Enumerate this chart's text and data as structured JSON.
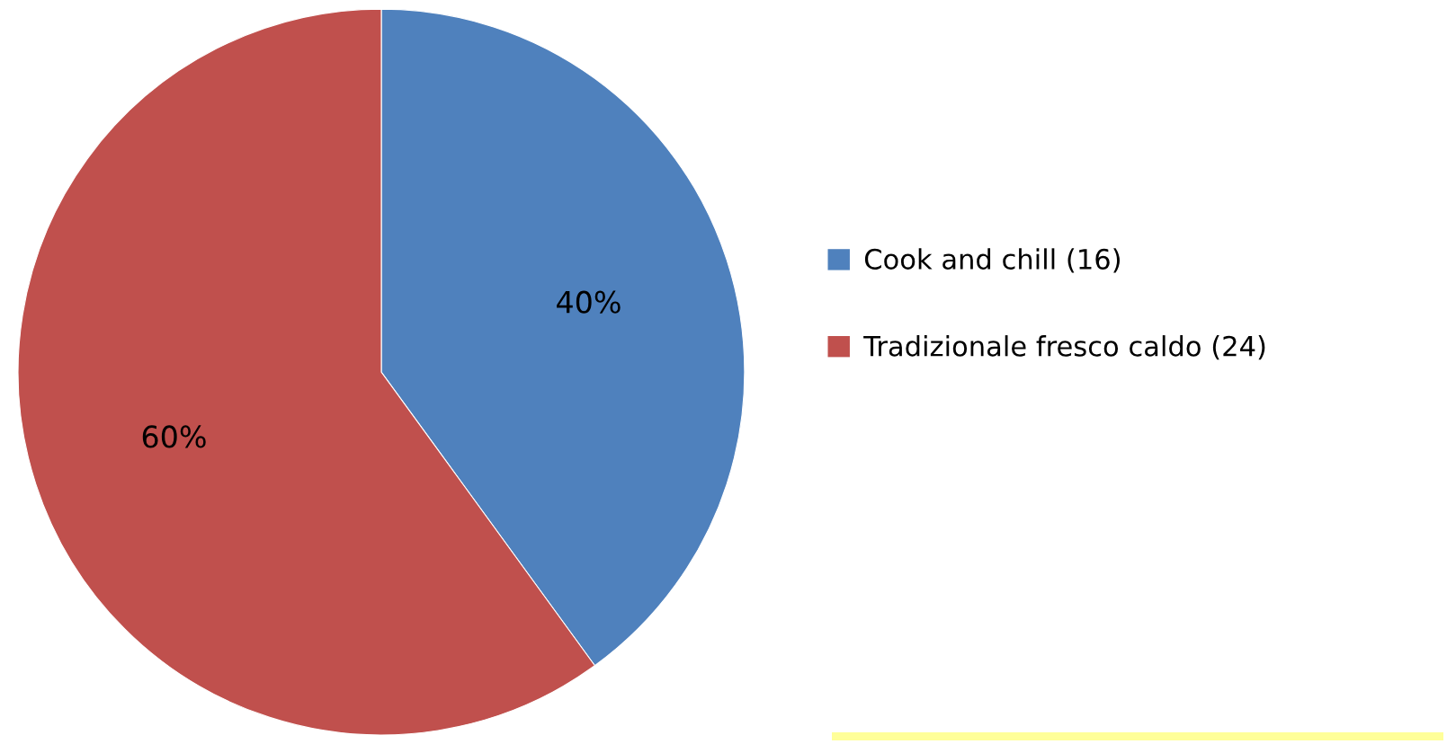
{
  "chart_data": {
    "type": "pie",
    "categories": [
      "Cook and chill (16)",
      "Tradizionale fresco caldo (24)"
    ],
    "values": [
      40,
      60
    ],
    "colors": [
      "#4f81bd",
      "#c0504d"
    ],
    "value_labels": [
      "40%",
      "60%"
    ],
    "legend": "right"
  }
}
